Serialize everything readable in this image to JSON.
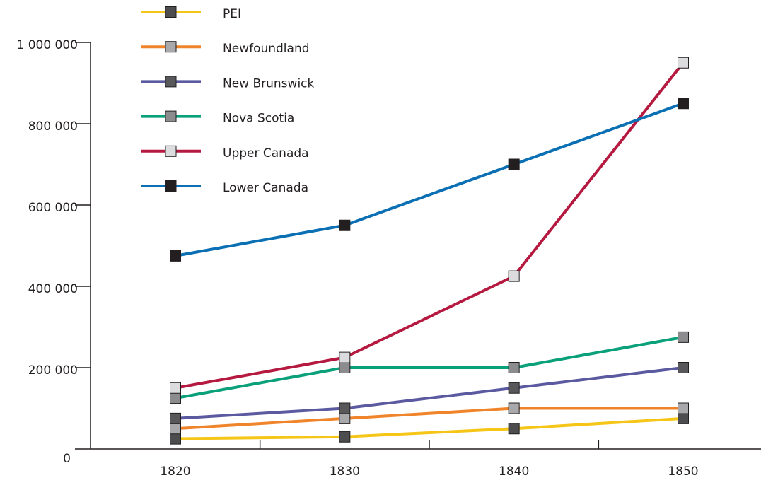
{
  "chart_data": {
    "type": "line",
    "categories": [
      "1820",
      "1830",
      "1840",
      "1850"
    ],
    "series": [
      {
        "name": "PEI",
        "color": "#f5c518",
        "marker": "#4d4d4f",
        "values": [
          25000,
          30000,
          50000,
          75000
        ]
      },
      {
        "name": "Newfoundland",
        "color": "#f0842a",
        "marker": "#a9a9ab",
        "values": [
          50000,
          75000,
          100000,
          100000
        ]
      },
      {
        "name": "New Brunswick",
        "color": "#5b5aa0",
        "marker": "#58585a",
        "values": [
          75000,
          100000,
          150000,
          200000
        ]
      },
      {
        "name": "Nova Scotia",
        "color": "#0aa07a",
        "marker": "#8c8c8e",
        "values": [
          125000,
          200000,
          200000,
          275000
        ]
      },
      {
        "name": "Upper Canada",
        "color": "#b5193f",
        "marker": "#dcdcde",
        "values": [
          150000,
          225000,
          425000,
          950000
        ]
      },
      {
        "name": "Lower Canada",
        "color": "#0b6fb3",
        "marker": "#231f20",
        "values": [
          475000,
          550000,
          700000,
          850000
        ]
      }
    ],
    "ylim": [
      0,
      1000000
    ],
    "yticks": [
      0,
      {
        "value": 200000,
        "label": "200 000"
      },
      {
        "value": 400000,
        "label": "400 000"
      },
      {
        "value": 600000,
        "label": "600 000"
      },
      {
        "value": 800000,
        "label": "800 000"
      },
      {
        "value": 1000000,
        "label": "1 000 000"
      }
    ],
    "legend": "top-left"
  }
}
